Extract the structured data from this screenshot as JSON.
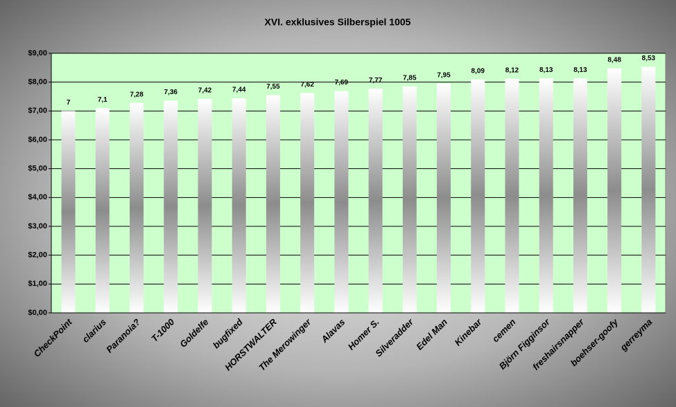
{
  "chart_data": {
    "type": "bar",
    "title": "XVI. exklusives Silberspiel 1005",
    "categories": [
      "CheckPoint",
      "clarius",
      "Paranoia?",
      "T-1000",
      "Goldelfe",
      "bugfixed",
      "HORSTWALTER",
      "The Merowinger",
      "Alavas",
      "Homer S.",
      "Silveradder",
      "Edel Man",
      "Kinebar",
      "cemen",
      "Björn Figginsor",
      "freshairsnapper",
      "boehser-goofy",
      "gerreyma"
    ],
    "values": [
      7,
      7.1,
      7.28,
      7.36,
      7.42,
      7.44,
      7.55,
      7.62,
      7.69,
      7.77,
      7.85,
      7.95,
      8.09,
      8.12,
      8.13,
      8.13,
      8.48,
      8.53
    ],
    "value_labels": [
      "7",
      "7,1",
      "7,28",
      "7,36",
      "7,42",
      "7,44",
      "7,55",
      "7,62",
      "7,69",
      "7,77",
      "7,85",
      "7,95",
      "8,09",
      "8,12",
      "8,13",
      "8,13",
      "8,48",
      "8,53"
    ],
    "color": "#8c8c8c",
    "ylim": [
      0,
      9
    ],
    "yticks": [
      {
        "value": 0,
        "label": "$0,00"
      },
      {
        "value": 1,
        "label": "$1,00"
      },
      {
        "value": 2,
        "label": "$2,00"
      },
      {
        "value": 3,
        "label": "$3,00"
      },
      {
        "value": 4,
        "label": "$4,00"
      },
      {
        "value": 5,
        "label": "$5,00"
      },
      {
        "value": 6,
        "label": "$6,00"
      },
      {
        "value": 7,
        "label": "$7,00"
      },
      {
        "value": 8,
        "label": "$8,00"
      },
      {
        "value": 9,
        "label": "$9,00"
      }
    ],
    "grid": true
  }
}
